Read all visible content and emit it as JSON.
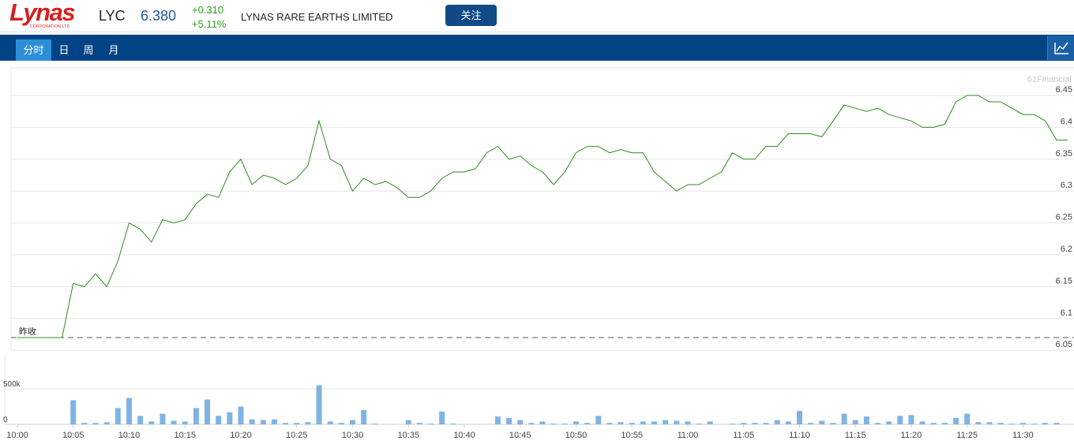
{
  "header": {
    "logo_text": "Lynas",
    "logo_sub": "CORPORATION LTD",
    "ticker": "LYC",
    "price": "6.380",
    "change": "+0.310",
    "change_pct": "+5.11%",
    "company_name": "LYNAS RARE EARTHS LIMITED",
    "follow_label": "关注"
  },
  "tabs": [
    {
      "label": "分时",
      "active": true
    },
    {
      "label": "日",
      "active": false
    },
    {
      "label": "周",
      "active": false
    },
    {
      "label": "月",
      "active": false
    }
  ],
  "colors": {
    "nav_bg": "#004486",
    "active_tab": "#2d8ed8",
    "price_line": "#2e8b1e",
    "volume_bar": "#7fb3e6",
    "up": "#2f9b1f",
    "price": "#1f5a99",
    "follow_button": "#124a87"
  },
  "chart_data": {
    "type": "line",
    "watermark": "61Financial",
    "prev_close_label": "昨收",
    "prev_close": 6.07,
    "y_ticks": [
      "6.45",
      "6.4",
      "6.35",
      "6.3",
      "6.25",
      "6.2",
      "6.15",
      "6.1",
      "6.05"
    ],
    "ylim": [
      6.05,
      6.45
    ],
    "x_ticks": [
      "10:00",
      "10:05",
      "10:10",
      "10:15",
      "10:20",
      "10:25",
      "10:30",
      "10:35",
      "10:40",
      "10:45",
      "10:50",
      "10:55",
      "11:00",
      "11:05",
      "11:10",
      "11:15",
      "11:20",
      "11:25",
      "11:30"
    ],
    "x_range_minutes": [
      0,
      94
    ],
    "price_series": [
      [
        0,
        6.07
      ],
      [
        1,
        6.07
      ],
      [
        2,
        6.07
      ],
      [
        3,
        6.07
      ],
      [
        4,
        6.07
      ],
      [
        5,
        6.155
      ],
      [
        6,
        6.15
      ],
      [
        7,
        6.17
      ],
      [
        8,
        6.15
      ],
      [
        9,
        6.19
      ],
      [
        10,
        6.25
      ],
      [
        11,
        6.24
      ],
      [
        12,
        6.22
      ],
      [
        13,
        6.255
      ],
      [
        14,
        6.25
      ],
      [
        15,
        6.255
      ],
      [
        16,
        6.28
      ],
      [
        17,
        6.295
      ],
      [
        18,
        6.29
      ],
      [
        19,
        6.33
      ],
      [
        20,
        6.35
      ],
      [
        21,
        6.31
      ],
      [
        22,
        6.325
      ],
      [
        23,
        6.32
      ],
      [
        24,
        6.31
      ],
      [
        25,
        6.32
      ],
      [
        26,
        6.34
      ],
      [
        27,
        6.41
      ],
      [
        28,
        6.35
      ],
      [
        29,
        6.34
      ],
      [
        30,
        6.3
      ],
      [
        31,
        6.32
      ],
      [
        32,
        6.31
      ],
      [
        33,
        6.315
      ],
      [
        34,
        6.305
      ],
      [
        35,
        6.29
      ],
      [
        36,
        6.29
      ],
      [
        37,
        6.3
      ],
      [
        38,
        6.32
      ],
      [
        39,
        6.33
      ],
      [
        40,
        6.33
      ],
      [
        41,
        6.335
      ],
      [
        42,
        6.36
      ],
      [
        43,
        6.37
      ],
      [
        44,
        6.35
      ],
      [
        45,
        6.355
      ],
      [
        46,
        6.34
      ],
      [
        47,
        6.33
      ],
      [
        48,
        6.31
      ],
      [
        49,
        6.33
      ],
      [
        50,
        6.36
      ],
      [
        51,
        6.37
      ],
      [
        52,
        6.37
      ],
      [
        53,
        6.36
      ],
      [
        54,
        6.365
      ],
      [
        55,
        6.36
      ],
      [
        56,
        6.36
      ],
      [
        57,
        6.33
      ],
      [
        58,
        6.315
      ],
      [
        59,
        6.3
      ],
      [
        60,
        6.31
      ],
      [
        61,
        6.31
      ],
      [
        62,
        6.32
      ],
      [
        63,
        6.33
      ],
      [
        64,
        6.36
      ],
      [
        65,
        6.35
      ],
      [
        66,
        6.35
      ],
      [
        67,
        6.37
      ],
      [
        68,
        6.37
      ],
      [
        69,
        6.39
      ],
      [
        70,
        6.39
      ],
      [
        71,
        6.39
      ],
      [
        72,
        6.385
      ],
      [
        73,
        6.41
      ],
      [
        74,
        6.435
      ],
      [
        75,
        6.43
      ],
      [
        76,
        6.425
      ],
      [
        77,
        6.43
      ],
      [
        78,
        6.42
      ],
      [
        79,
        6.415
      ],
      [
        80,
        6.41
      ],
      [
        81,
        6.4
      ],
      [
        82,
        6.4
      ],
      [
        83,
        6.405
      ],
      [
        84,
        6.44
      ],
      [
        85,
        6.45
      ],
      [
        86,
        6.45
      ],
      [
        87,
        6.44
      ],
      [
        88,
        6.44
      ],
      [
        89,
        6.43
      ],
      [
        90,
        6.42
      ],
      [
        91,
        6.42
      ],
      [
        92,
        6.41
      ],
      [
        93,
        6.38
      ],
      [
        94,
        6.38
      ]
    ],
    "volume_label_top": "500k",
    "volume_label_zero": "0",
    "volume_max": 500000,
    "volume_series": [
      [
        5,
        340000
      ],
      [
        6,
        20000
      ],
      [
        7,
        20000
      ],
      [
        8,
        30000
      ],
      [
        9,
        230000
      ],
      [
        10,
        370000
      ],
      [
        11,
        120000
      ],
      [
        12,
        40000
      ],
      [
        13,
        150000
      ],
      [
        14,
        50000
      ],
      [
        15,
        40000
      ],
      [
        16,
        230000
      ],
      [
        17,
        350000
      ],
      [
        18,
        120000
      ],
      [
        19,
        170000
      ],
      [
        20,
        250000
      ],
      [
        21,
        70000
      ],
      [
        22,
        60000
      ],
      [
        23,
        70000
      ],
      [
        24,
        20000
      ],
      [
        25,
        20000
      ],
      [
        26,
        30000
      ],
      [
        27,
        550000
      ],
      [
        28,
        40000
      ],
      [
        29,
        20000
      ],
      [
        30,
        60000
      ],
      [
        31,
        200000
      ],
      [
        32,
        10000
      ],
      [
        35,
        60000
      ],
      [
        36,
        20000
      ],
      [
        37,
        10000
      ],
      [
        38,
        180000
      ],
      [
        39,
        10000
      ],
      [
        43,
        110000
      ],
      [
        44,
        90000
      ],
      [
        45,
        60000
      ],
      [
        46,
        20000
      ],
      [
        47,
        40000
      ],
      [
        48,
        10000
      ],
      [
        49,
        10000
      ],
      [
        50,
        40000
      ],
      [
        51,
        20000
      ],
      [
        52,
        120000
      ],
      [
        53,
        20000
      ],
      [
        54,
        30000
      ],
      [
        55,
        20000
      ],
      [
        56,
        40000
      ],
      [
        57,
        40000
      ],
      [
        58,
        60000
      ],
      [
        59,
        50000
      ],
      [
        60,
        40000
      ],
      [
        61,
        10000
      ],
      [
        62,
        40000
      ],
      [
        64,
        10000
      ],
      [
        65,
        20000
      ],
      [
        66,
        20000
      ],
      [
        67,
        20000
      ],
      [
        68,
        60000
      ],
      [
        69,
        40000
      ],
      [
        70,
        190000
      ],
      [
        71,
        20000
      ],
      [
        72,
        50000
      ],
      [
        73,
        20000
      ],
      [
        74,
        150000
      ],
      [
        75,
        60000
      ],
      [
        76,
        110000
      ],
      [
        77,
        20000
      ],
      [
        78,
        40000
      ],
      [
        79,
        120000
      ],
      [
        80,
        130000
      ],
      [
        81,
        40000
      ],
      [
        82,
        20000
      ],
      [
        83,
        20000
      ],
      [
        84,
        90000
      ],
      [
        85,
        150000
      ],
      [
        86,
        30000
      ],
      [
        87,
        30000
      ],
      [
        88,
        20000
      ],
      [
        89,
        10000
      ],
      [
        90,
        20000
      ],
      [
        91,
        10000
      ],
      [
        92,
        20000
      ],
      [
        93,
        20000
      ]
    ]
  }
}
